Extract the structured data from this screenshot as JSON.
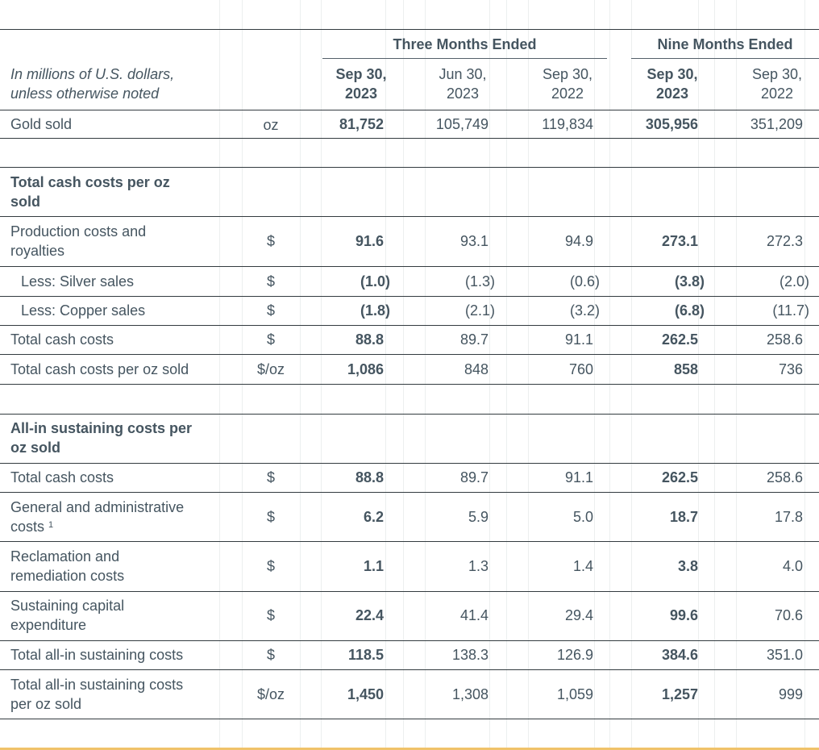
{
  "header": {
    "group_three": "Three Months Ended",
    "group_nine": "Nine Months Ended",
    "caption_line1": "In millions of U.S. dollars,",
    "caption_line2": "unless otherwise noted",
    "cols": [
      {
        "l1": "Sep 30,",
        "l2": "2023"
      },
      {
        "l1": "Jun 30,",
        "l2": "2023"
      },
      {
        "l1": "Sep 30,",
        "l2": "2022"
      },
      {
        "l1": "Sep 30,",
        "l2": "2023"
      },
      {
        "l1": "Sep 30,",
        "l2": "2022"
      }
    ]
  },
  "gold": {
    "label": "Gold sold",
    "unit": "oz",
    "v": [
      "81,752",
      "105,749",
      "119,834",
      "305,956",
      "351,209"
    ]
  },
  "cash": {
    "title_l1": "Total cash costs per oz",
    "title_l2": "sold",
    "rows": [
      {
        "label_l1": "Production costs and",
        "label_l2": "royalties",
        "unit": "$",
        "v": [
          "91.6",
          "93.1",
          "94.9",
          "273.1",
          "272.3"
        ]
      },
      {
        "label": "Less: Silver sales",
        "unit": "$",
        "v": [
          "(1.0)",
          "(1.3)",
          "(0.6)",
          "(3.8)",
          "(2.0)"
        ]
      },
      {
        "label": "Less: Copper sales",
        "unit": "$",
        "v": [
          "(1.8)",
          "(2.1)",
          "(3.2)",
          "(6.8)",
          "(11.7)"
        ]
      },
      {
        "label": "Total cash costs",
        "unit": "$",
        "v": [
          "88.8",
          "89.7",
          "91.1",
          "262.5",
          "258.6"
        ]
      },
      {
        "label": "Total cash costs per oz sold",
        "unit": "$/oz",
        "v": [
          "1,086",
          "848",
          "760",
          "858",
          "736"
        ]
      }
    ]
  },
  "aisc": {
    "title_l1": "All-in sustaining costs per",
    "title_l2": "oz sold",
    "rows": [
      {
        "label": "Total cash costs",
        "unit": "$",
        "v": [
          "88.8",
          "89.7",
          "91.1",
          "262.5",
          "258.6"
        ]
      },
      {
        "label_l1": "General and administrative",
        "label_l2": "costs",
        "footnote": "1",
        "unit": "$",
        "v": [
          "6.2",
          "5.9",
          "5.0",
          "18.7",
          "17.8"
        ]
      },
      {
        "label_l1": "Reclamation and",
        "label_l2": "remediation costs",
        "unit": "$",
        "v": [
          "1.1",
          "1.3",
          "1.4",
          "3.8",
          "4.0"
        ]
      },
      {
        "label_l1": "Sustaining capital",
        "label_l2": "expenditure",
        "unit": "$",
        "v": [
          "22.4",
          "41.4",
          "29.4",
          "99.6",
          "70.6"
        ]
      },
      {
        "label": "Total all-in sustaining costs",
        "unit": "$",
        "v": [
          "118.5",
          "138.3",
          "126.9",
          "384.6",
          "351.0"
        ]
      },
      {
        "label_l1": "Total all-in sustaining costs",
        "label_l2": "per oz sold",
        "unit": "$/oz",
        "v": [
          "1,450",
          "1,308",
          "1,059",
          "1,257",
          "999"
        ]
      }
    ]
  }
}
